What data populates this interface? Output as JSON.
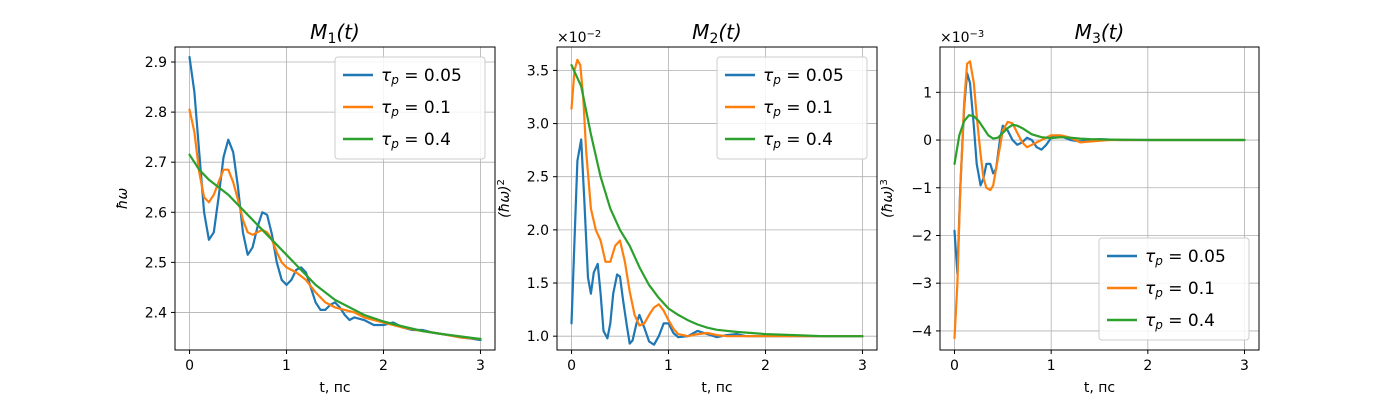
{
  "colors": {
    "s0": "#1f77b4",
    "s1": "#ff7f0e",
    "s2": "#2ca02c"
  },
  "legend_labels": [
    "τp = 0.05",
    "τp = 0.1",
    "τp = 0.4"
  ],
  "chart_data": [
    {
      "type": "line",
      "title": "M1(t)",
      "xlabel": "t, пс",
      "ylabel": "ħω",
      "multiplier": "",
      "xlim": [
        -0.15,
        3.15
      ],
      "ylim": [
        2.325,
        2.93
      ],
      "xticks": [
        0,
        1,
        2,
        3
      ],
      "yticks": [
        2.4,
        2.5,
        2.6,
        2.7,
        2.8,
        2.9
      ],
      "ytick_labels": [
        "2.4",
        "2.5",
        "2.6",
        "2.7",
        "2.8",
        "2.9"
      ],
      "legend": "top-right",
      "grid": true,
      "series": [
        {
          "name": "τp = 0.05",
          "x": [
            0,
            0.05,
            0.1,
            0.15,
            0.2,
            0.25,
            0.3,
            0.35,
            0.4,
            0.45,
            0.5,
            0.55,
            0.6,
            0.65,
            0.7,
            0.75,
            0.8,
            0.85,
            0.9,
            0.95,
            1.0,
            1.05,
            1.1,
            1.15,
            1.2,
            1.25,
            1.3,
            1.35,
            1.4,
            1.45,
            1.5,
            1.55,
            1.6,
            1.65,
            1.7,
            1.8,
            1.9,
            2.0,
            2.1,
            2.2,
            2.3,
            2.4,
            2.5,
            2.6,
            2.7,
            2.8,
            2.9,
            3.0
          ],
          "y": [
            2.91,
            2.84,
            2.72,
            2.6,
            2.545,
            2.56,
            2.63,
            2.71,
            2.745,
            2.72,
            2.65,
            2.56,
            2.515,
            2.53,
            2.57,
            2.6,
            2.595,
            2.555,
            2.5,
            2.465,
            2.455,
            2.465,
            2.485,
            2.49,
            2.48,
            2.45,
            2.42,
            2.405,
            2.405,
            2.415,
            2.42,
            2.41,
            2.395,
            2.385,
            2.39,
            2.385,
            2.375,
            2.375,
            2.38,
            2.37,
            2.365,
            2.365,
            2.36,
            2.357,
            2.354,
            2.35,
            2.348,
            2.345
          ]
        },
        {
          "name": "τp = 0.1",
          "x": [
            0,
            0.05,
            0.1,
            0.15,
            0.2,
            0.25,
            0.3,
            0.35,
            0.4,
            0.45,
            0.5,
            0.55,
            0.6,
            0.65,
            0.7,
            0.75,
            0.8,
            0.85,
            0.9,
            0.95,
            1.0,
            1.1,
            1.2,
            1.3,
            1.4,
            1.5,
            1.6,
            1.7,
            1.8,
            1.9,
            2.0,
            2.2,
            2.4,
            2.6,
            2.8,
            3.0
          ],
          "y": [
            2.805,
            2.76,
            2.68,
            2.63,
            2.62,
            2.635,
            2.66,
            2.685,
            2.685,
            2.66,
            2.625,
            2.585,
            2.56,
            2.555,
            2.56,
            2.565,
            2.56,
            2.545,
            2.52,
            2.5,
            2.49,
            2.48,
            2.465,
            2.44,
            2.42,
            2.41,
            2.405,
            2.4,
            2.39,
            2.385,
            2.38,
            2.37,
            2.363,
            2.357,
            2.35,
            2.347
          ]
        },
        {
          "name": "τp = 0.4",
          "x": [
            0,
            0.1,
            0.2,
            0.3,
            0.4,
            0.5,
            0.6,
            0.7,
            0.8,
            0.9,
            1.0,
            1.1,
            1.2,
            1.3,
            1.4,
            1.5,
            1.6,
            1.8,
            2.0,
            2.2,
            2.4,
            2.6,
            2.8,
            3.0
          ],
          "y": [
            2.715,
            2.685,
            2.665,
            2.65,
            2.635,
            2.615,
            2.595,
            2.575,
            2.555,
            2.535,
            2.515,
            2.495,
            2.475,
            2.455,
            2.44,
            2.425,
            2.415,
            2.395,
            2.382,
            2.372,
            2.363,
            2.357,
            2.352,
            2.347
          ]
        }
      ]
    },
    {
      "type": "line",
      "title": "M2(t)",
      "xlabel": "t, пс",
      "ylabel": "(ħω)2",
      "multiplier": "×10−2",
      "xlim": [
        -0.15,
        3.15
      ],
      "ylim": [
        0.87,
        3.72
      ],
      "xticks": [
        0,
        1,
        2,
        3
      ],
      "yticks": [
        1.0,
        1.5,
        2.0,
        2.5,
        3.0,
        3.5
      ],
      "ytick_labels": [
        "1.0",
        "1.5",
        "2.0",
        "2.5",
        "3.0",
        "3.5"
      ],
      "legend": "top-right",
      "grid": true,
      "series": [
        {
          "name": "τp = 0.05",
          "x": [
            0,
            0.03,
            0.06,
            0.1,
            0.13,
            0.17,
            0.2,
            0.23,
            0.27,
            0.3,
            0.33,
            0.37,
            0.4,
            0.43,
            0.47,
            0.5,
            0.53,
            0.57,
            0.6,
            0.63,
            0.67,
            0.7,
            0.75,
            0.8,
            0.85,
            0.9,
            0.95,
            1.0,
            1.05,
            1.1,
            1.2,
            1.3,
            1.4,
            1.5,
            1.6,
            1.7,
            1.8,
            1.9,
            2.0,
            2.2,
            2.4,
            2.6,
            2.8,
            3.0
          ],
          "y": [
            1.12,
            1.9,
            2.65,
            2.85,
            2.3,
            1.55,
            1.4,
            1.6,
            1.68,
            1.4,
            1.05,
            0.98,
            1.12,
            1.4,
            1.58,
            1.56,
            1.35,
            1.1,
            0.93,
            0.96,
            1.12,
            1.2,
            1.08,
            0.95,
            0.92,
            1.0,
            1.12,
            1.12,
            1.03,
            0.99,
            1.0,
            1.05,
            1.02,
            0.99,
            1.01,
            1.02,
            1.0,
            1.0,
            1.0,
            1.0,
            1.0,
            1.0,
            1.0,
            1.0
          ]
        },
        {
          "name": "τp = 0.1",
          "x": [
            0,
            0.03,
            0.06,
            0.09,
            0.12,
            0.15,
            0.2,
            0.25,
            0.3,
            0.35,
            0.4,
            0.45,
            0.5,
            0.55,
            0.6,
            0.65,
            0.7,
            0.75,
            0.8,
            0.85,
            0.9,
            0.95,
            1.0,
            1.05,
            1.1,
            1.2,
            1.3,
            1.4,
            1.5,
            1.6,
            1.8,
            2.0,
            2.5,
            3.0
          ],
          "y": [
            3.14,
            3.5,
            3.6,
            3.55,
            3.25,
            2.75,
            2.2,
            2.0,
            1.9,
            1.7,
            1.7,
            1.85,
            1.9,
            1.7,
            1.42,
            1.2,
            1.1,
            1.12,
            1.2,
            1.27,
            1.3,
            1.24,
            1.15,
            1.07,
            1.02,
            1.0,
            1.02,
            1.03,
            1.01,
            1.0,
            1.0,
            1.0,
            1.0,
            1.0
          ]
        },
        {
          "name": "τp = 0.4",
          "x": [
            0,
            0.1,
            0.2,
            0.3,
            0.4,
            0.5,
            0.6,
            0.7,
            0.8,
            0.9,
            1.0,
            1.1,
            1.2,
            1.3,
            1.4,
            1.5,
            1.7,
            2.0,
            2.3,
            2.6,
            3.0
          ],
          "y": [
            3.55,
            3.35,
            2.9,
            2.5,
            2.2,
            2.0,
            1.85,
            1.65,
            1.48,
            1.36,
            1.26,
            1.2,
            1.15,
            1.11,
            1.08,
            1.06,
            1.04,
            1.02,
            1.01,
            1.0,
            1.0
          ]
        }
      ]
    },
    {
      "type": "line",
      "title": "M3(t)",
      "xlabel": "t, пс",
      "ylabel": "(ħω)3",
      "multiplier": "×10−3",
      "xlim": [
        -0.15,
        3.15
      ],
      "ylim": [
        -4.4,
        1.95
      ],
      "xticks": [
        0,
        1,
        2,
        3
      ],
      "yticks": [
        -4,
        -3,
        -2,
        -1,
        0,
        1
      ],
      "ytick_labels": [
        "−4",
        "−3",
        "−2",
        "−1",
        "0",
        "1"
      ],
      "legend": "bottom-right",
      "grid": true,
      "series": [
        {
          "name": "τp = 0.05",
          "x": [
            0,
            0.03,
            0.06,
            0.1,
            0.13,
            0.16,
            0.2,
            0.23,
            0.27,
            0.3,
            0.33,
            0.37,
            0.4,
            0.43,
            0.47,
            0.5,
            0.55,
            0.6,
            0.65,
            0.7,
            0.75,
            0.8,
            0.85,
            0.9,
            0.95,
            1.0,
            1.05,
            1.1,
            1.2,
            1.3,
            1.4,
            1.5,
            1.7,
            2.0,
            2.5,
            3.0
          ],
          "y": [
            -1.9,
            -2.8,
            -1.0,
            0.7,
            1.4,
            1.2,
            0.3,
            -0.5,
            -0.95,
            -0.8,
            -0.5,
            -0.5,
            -0.7,
            -0.6,
            0.0,
            0.3,
            0.2,
            0.0,
            -0.1,
            -0.05,
            0.05,
            0.0,
            -0.15,
            -0.2,
            -0.1,
            0.05,
            0.1,
            0.08,
            0.0,
            -0.03,
            0.0,
            0.02,
            0.0,
            0.0,
            0.0,
            0.0
          ]
        },
        {
          "name": "τp = 0.1",
          "x": [
            0,
            0.03,
            0.06,
            0.1,
            0.13,
            0.16,
            0.2,
            0.23,
            0.27,
            0.3,
            0.33,
            0.37,
            0.4,
            0.43,
            0.47,
            0.5,
            0.55,
            0.6,
            0.65,
            0.7,
            0.75,
            0.8,
            0.9,
            1.0,
            1.1,
            1.2,
            1.3,
            1.4,
            1.6,
            2.0,
            2.5,
            3.0
          ],
          "y": [
            -4.15,
            -3.0,
            -1.0,
            0.8,
            1.6,
            1.65,
            1.2,
            0.5,
            -0.3,
            -0.8,
            -1.0,
            -1.05,
            -0.95,
            -0.6,
            -0.15,
            0.2,
            0.38,
            0.35,
            0.15,
            -0.05,
            -0.15,
            -0.1,
            0.0,
            0.1,
            0.1,
            0.05,
            -0.05,
            -0.03,
            0.0,
            0.0,
            0.0,
            0.0
          ]
        },
        {
          "name": "τp = 0.4",
          "x": [
            0,
            0.05,
            0.1,
            0.15,
            0.2,
            0.25,
            0.3,
            0.35,
            0.4,
            0.45,
            0.5,
            0.55,
            0.6,
            0.65,
            0.7,
            0.8,
            0.9,
            1.0,
            1.1,
            1.2,
            1.3,
            1.4,
            1.6,
            2.0,
            2.5,
            3.0
          ],
          "y": [
            -0.5,
            0.1,
            0.4,
            0.52,
            0.5,
            0.4,
            0.25,
            0.1,
            0.03,
            0.05,
            0.15,
            0.25,
            0.32,
            0.3,
            0.25,
            0.12,
            0.06,
            0.04,
            0.06,
            0.05,
            0.03,
            0.02,
            0.01,
            0.0,
            0.0,
            0.0
          ]
        }
      ]
    }
  ]
}
